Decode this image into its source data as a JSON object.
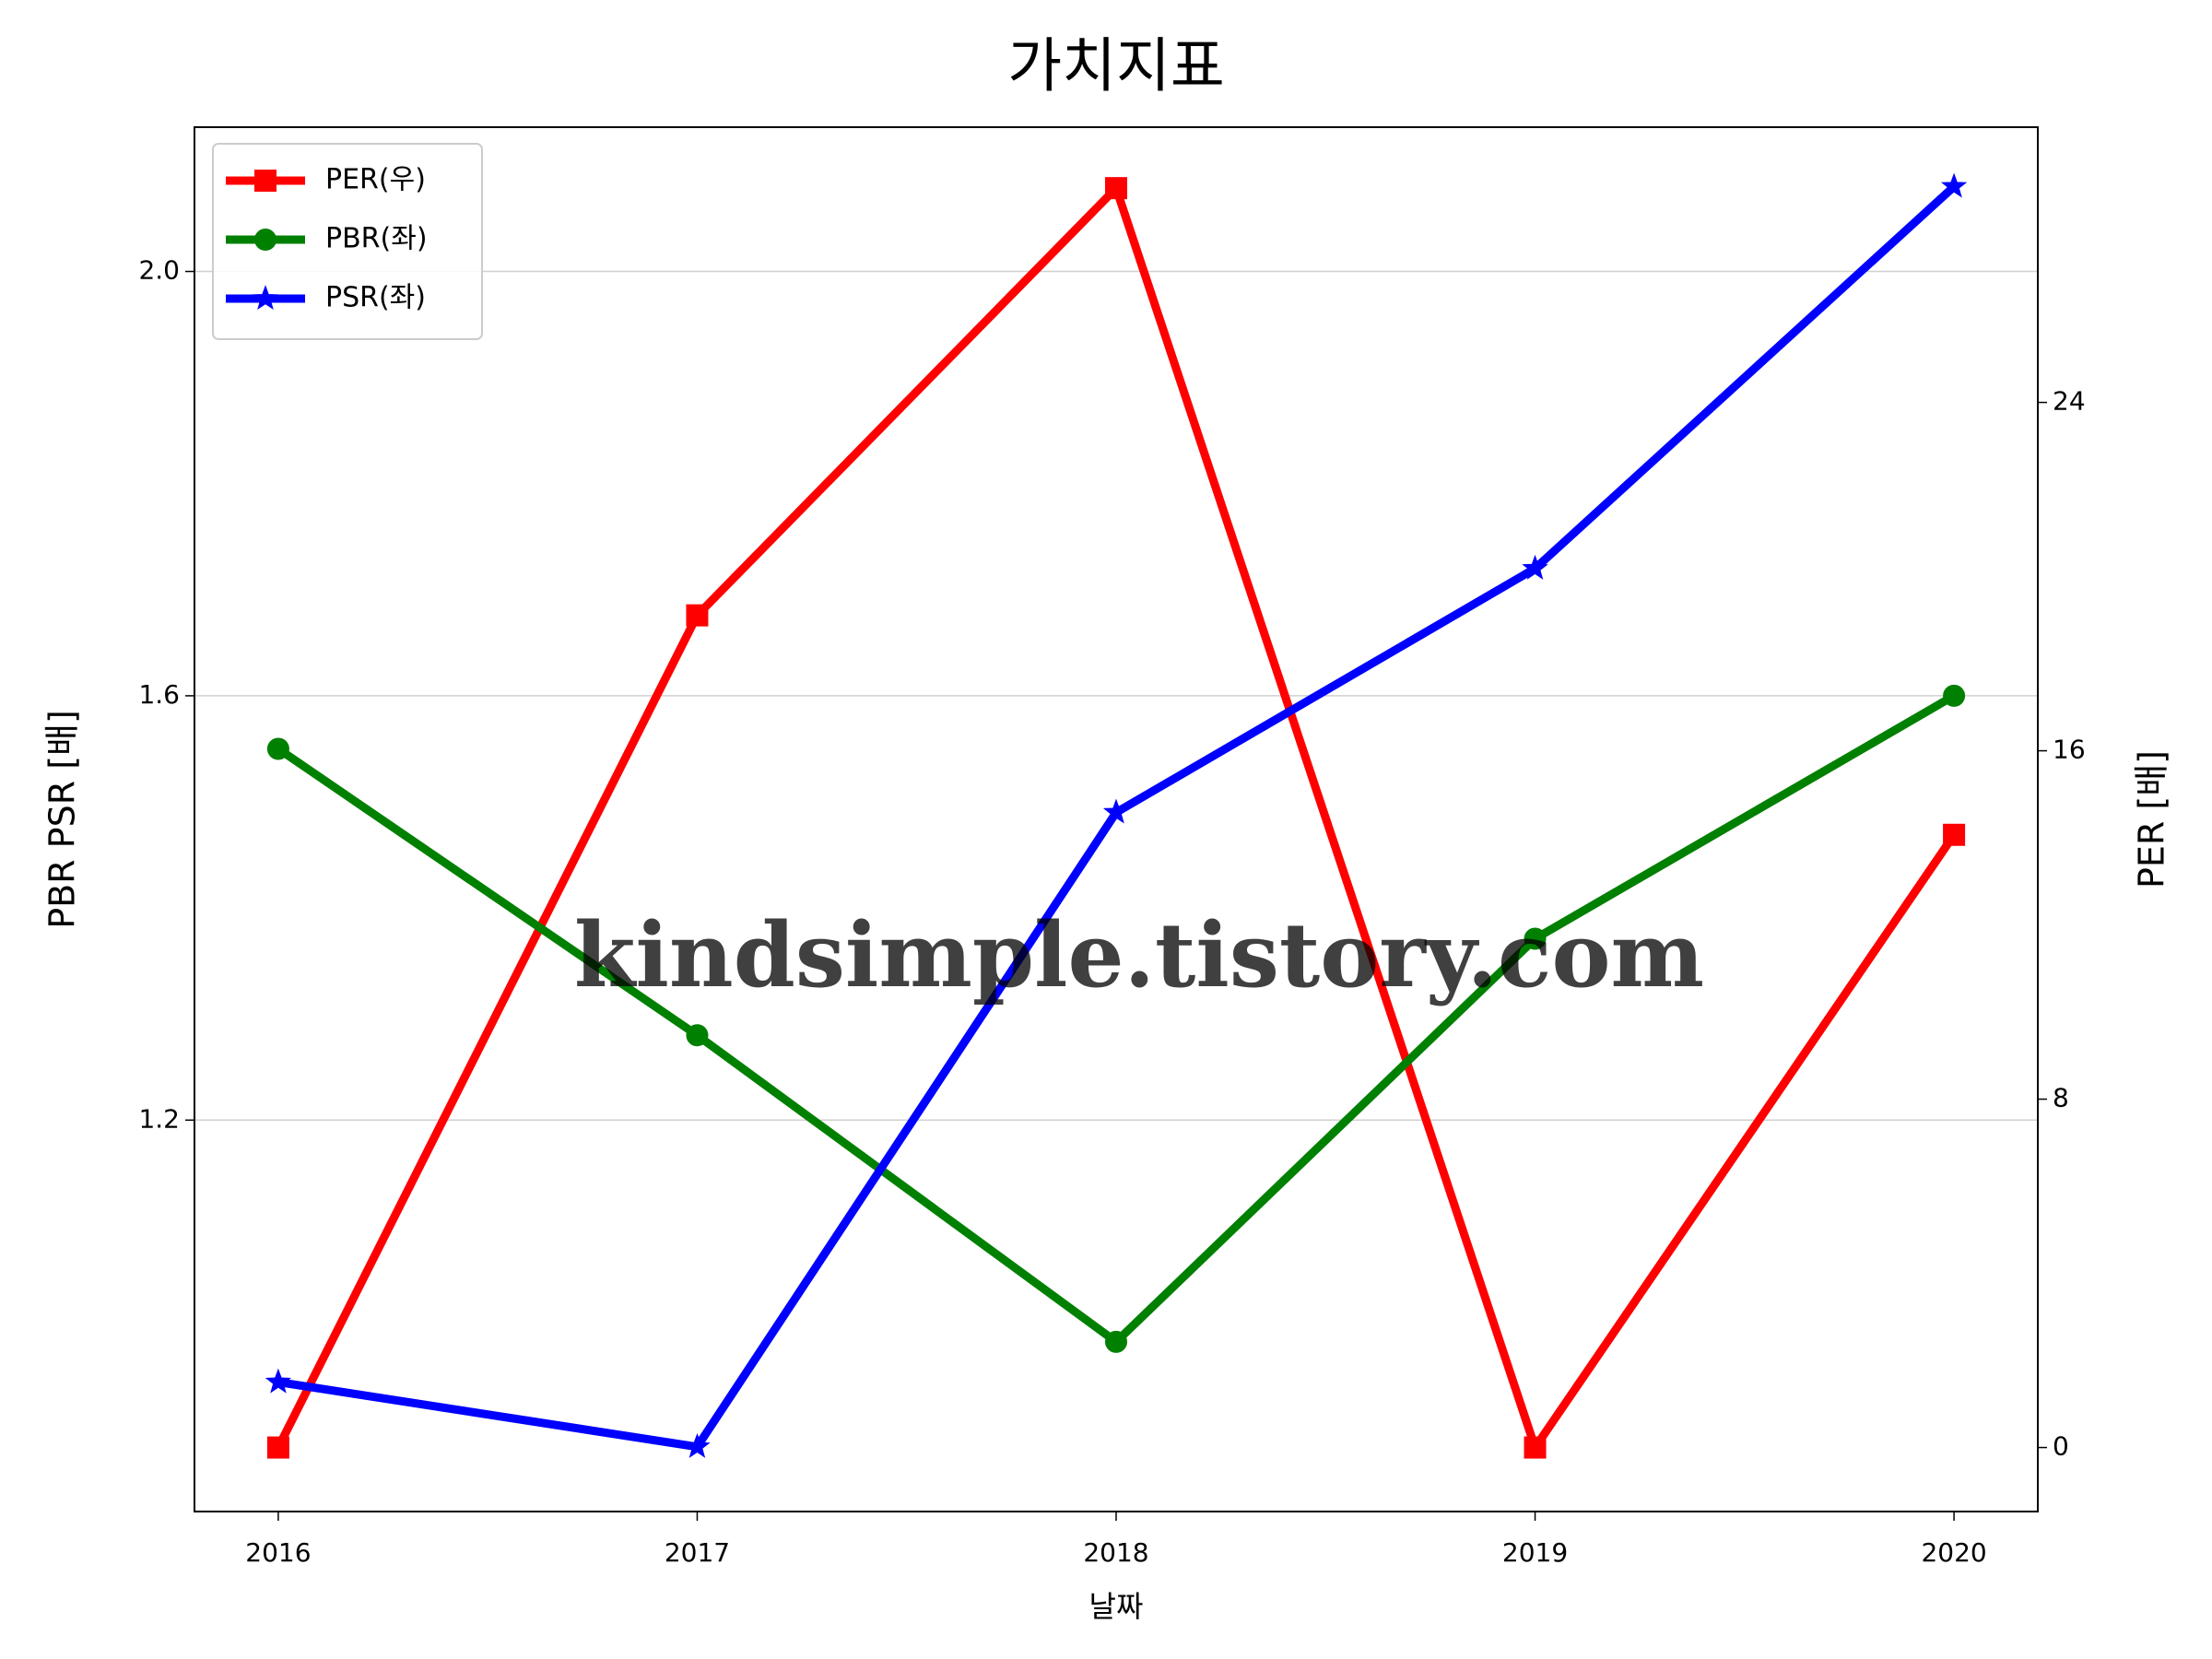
{
  "chart_data": {
    "type": "line",
    "title": "가치지표",
    "xlabel": "날짜",
    "ylabel": "PBR PSR [배]",
    "ylabel_color": "#008000",
    "y2label": "PER [배]",
    "y2label_color": "#ff0000",
    "watermark": "kindsimple.tistory.com",
    "x": [
      2016,
      2017,
      2018,
      2019,
      2020
    ],
    "xlim": [
      2015.8,
      2020.2
    ],
    "xticks": [
      2016,
      2017,
      2018,
      2019,
      2020
    ],
    "ylim": [
      0.831,
      2.136
    ],
    "yticks": [
      1.2,
      1.6,
      {
        "value": 2.0,
        "label": "2.0"
      }
    ],
    "y2lim": [
      -1.47,
      30.32
    ],
    "y2ticks": [
      0,
      8,
      16,
      24
    ],
    "grid": true,
    "legend": "upper left",
    "series": [
      {
        "name": "PER(우)",
        "color": "#ff0000",
        "marker": "square",
        "axis": "y2",
        "values": [
          0,
          19.11,
          28.92,
          0,
          14.07
        ]
      },
      {
        "name": "PBR(좌)",
        "color": "#008000",
        "marker": "circle",
        "values": [
          1.55,
          1.28,
          0.991,
          1.371,
          1.6
        ]
      },
      {
        "name": "PSR(좌)",
        "color": "#0000ff",
        "marker": "star",
        "values": [
          0.953,
          0.892,
          1.49,
          1.72,
          2.08
        ]
      }
    ]
  }
}
